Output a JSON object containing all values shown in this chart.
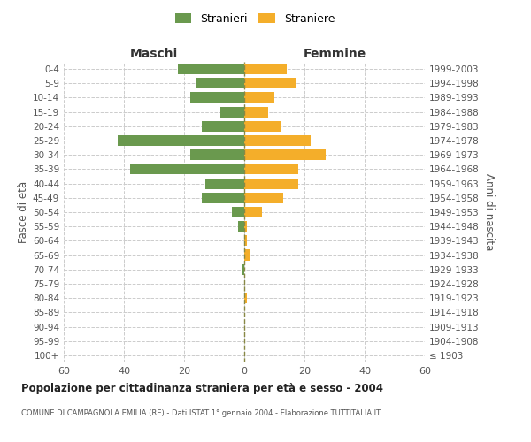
{
  "age_groups": [
    "100+",
    "95-99",
    "90-94",
    "85-89",
    "80-84",
    "75-79",
    "70-74",
    "65-69",
    "60-64",
    "55-59",
    "50-54",
    "45-49",
    "40-44",
    "35-39",
    "30-34",
    "25-29",
    "20-24",
    "15-19",
    "10-14",
    "5-9",
    "0-4"
  ],
  "birth_years": [
    "≤ 1903",
    "1904-1908",
    "1909-1913",
    "1914-1918",
    "1919-1923",
    "1924-1928",
    "1929-1933",
    "1934-1938",
    "1939-1943",
    "1944-1948",
    "1949-1953",
    "1954-1958",
    "1959-1963",
    "1964-1968",
    "1969-1973",
    "1974-1978",
    "1979-1983",
    "1984-1988",
    "1989-1993",
    "1994-1998",
    "1999-2003"
  ],
  "males": [
    0,
    0,
    0,
    0,
    0,
    0,
    1,
    0,
    0,
    2,
    4,
    14,
    13,
    38,
    18,
    42,
    14,
    8,
    18,
    16,
    22
  ],
  "females": [
    0,
    0,
    0,
    0,
    1,
    0,
    0,
    2,
    1,
    1,
    6,
    13,
    18,
    18,
    27,
    22,
    12,
    8,
    10,
    17,
    14
  ],
  "male_color": "#6a994e",
  "female_color": "#f4ae2a",
  "dashed_line_color": "#888844",
  "grid_color": "#cccccc",
  "background_color": "#ffffff",
  "title": "Popolazione per cittadinanza straniera per età e sesso - 2004",
  "subtitle": "COMUNE DI CAMPAGNOLA EMILIA (RE) - Dati ISTAT 1° gennaio 2004 - Elaborazione TUTTITALIA.IT",
  "xlabel_left": "Maschi",
  "xlabel_right": "Femmine",
  "ylabel_left": "Fasce di età",
  "ylabel_right": "Anni di nascita",
  "legend_male": "Stranieri",
  "legend_female": "Straniere",
  "xlim": 60,
  "bar_height": 0.75
}
